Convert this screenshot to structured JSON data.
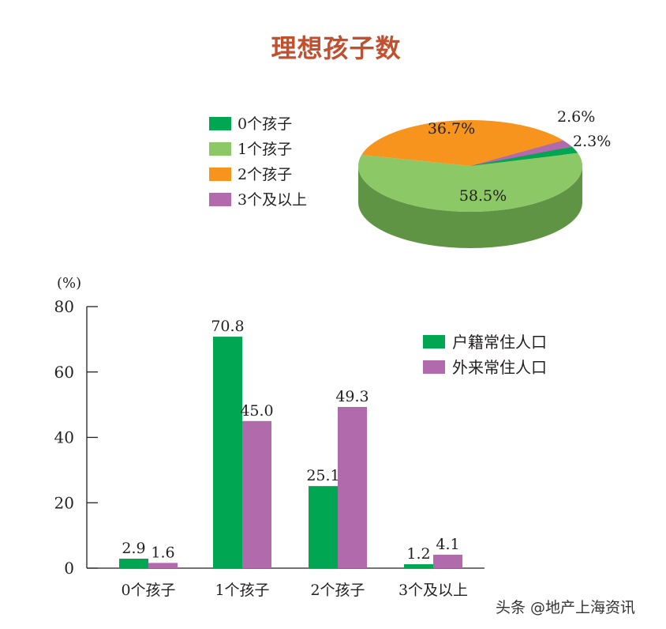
{
  "watermark": "头条 @地产上海资讯",
  "chart_data": [
    {
      "type": "pie",
      "title": "理想孩子数",
      "slices": [
        {
          "label": "0个孩子",
          "value": 2.3,
          "value_label": "2.3%",
          "color": "#00a651",
          "side_color": "#007a3b"
        },
        {
          "label": "1个孩子",
          "value": 58.5,
          "value_label": "58.5%",
          "color": "#8cc966",
          "side_color": "#5f9445"
        },
        {
          "label": "2个孩子",
          "value": 36.7,
          "value_label": "36.7%",
          "color": "#f7941d",
          "side_color": "#9e5a0f"
        },
        {
          "label": "3个及以上",
          "value": 2.6,
          "value_label": "2.6%",
          "color": "#b16aac",
          "side_color": "#7c4478"
        }
      ],
      "legend_position": "left"
    },
    {
      "type": "bar",
      "ylabel": "(%)",
      "ylim": [
        0,
        80
      ],
      "yticks": [
        0,
        20,
        40,
        60,
        80
      ],
      "categories": [
        "0个孩子",
        "1个孩子",
        "2个孩子",
        "3个及以上"
      ],
      "series": [
        {
          "name": "户籍常住人口",
          "values": [
            2.9,
            70.8,
            25.1,
            1.2
          ],
          "value_labels": [
            "2.9",
            "70.8",
            "25.1",
            "1.2"
          ],
          "color": "#00a651"
        },
        {
          "name": "外来常住人口",
          "values": [
            1.6,
            45.0,
            49.3,
            4.1
          ],
          "value_labels": [
            "1.6",
            "45.0",
            "49.3",
            "4.1"
          ],
          "color": "#b16aac"
        }
      ],
      "legend_position": "top-right",
      "grid": false
    }
  ]
}
